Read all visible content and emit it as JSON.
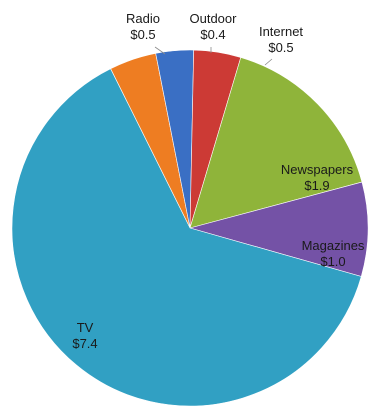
{
  "chart_data": {
    "type": "pie",
    "title": "",
    "slices": [
      {
        "label": "Radio",
        "value": 0.5,
        "value_label": "$0.5",
        "color": "#EE7D22"
      },
      {
        "label": "Outdoor",
        "value": 0.4,
        "value_label": "$0.4",
        "color": "#3A6FC4"
      },
      {
        "label": "Internet",
        "value": 0.5,
        "value_label": "$0.5",
        "color": "#CC3A35"
      },
      {
        "label": "Newspapers",
        "value": 1.9,
        "value_label": "$1.9",
        "color": "#8FB43A"
      },
      {
        "label": "Magazines",
        "value": 1.0,
        "value_label": "$1.0",
        "color": "#7452A6"
      },
      {
        "label": "TV",
        "value": 7.4,
        "value_label": "$7.4",
        "color": "#31A0C3"
      }
    ],
    "start_angle_deg": -26.5,
    "legend": "none"
  }
}
